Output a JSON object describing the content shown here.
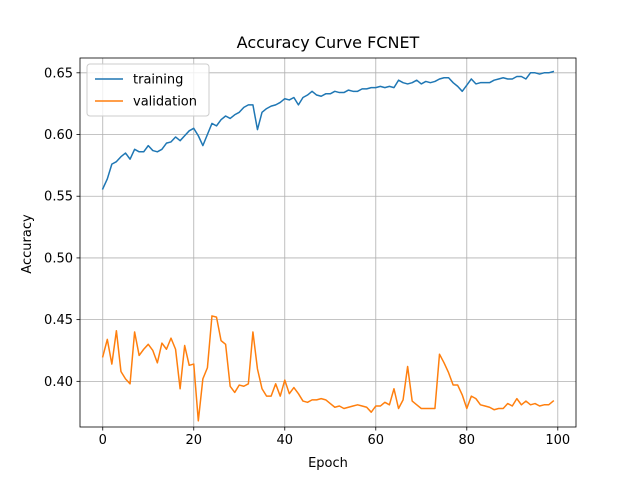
{
  "chart_data": {
    "type": "line",
    "title": "Accuracy Curve FCNET",
    "xlabel": "Epoch",
    "ylabel": "Accuracy",
    "xlim": [
      -5,
      104
    ],
    "ylim": [
      0.363,
      0.662
    ],
    "xticks": [
      0,
      20,
      40,
      60,
      80,
      100
    ],
    "xtick_labels": [
      "0",
      "20",
      "40",
      "60",
      "80",
      "100"
    ],
    "yticks": [
      0.4,
      0.45,
      0.5,
      0.55,
      0.6,
      0.65
    ],
    "ytick_labels": [
      "0.40",
      "0.45",
      "0.50",
      "0.55",
      "0.60",
      "0.65"
    ],
    "grid": true,
    "legend_position": "top-left",
    "series": [
      {
        "name": "training",
        "color": "#1f77b4",
        "x": [
          0,
          1,
          2,
          3,
          4,
          5,
          6,
          7,
          8,
          9,
          10,
          11,
          12,
          13,
          14,
          15,
          16,
          17,
          18,
          19,
          20,
          21,
          22,
          23,
          24,
          25,
          26,
          27,
          28,
          29,
          30,
          31,
          32,
          33,
          34,
          35,
          36,
          37,
          38,
          39,
          40,
          41,
          42,
          43,
          44,
          45,
          46,
          47,
          48,
          49,
          50,
          51,
          52,
          53,
          54,
          55,
          56,
          57,
          58,
          59,
          60,
          61,
          62,
          63,
          64,
          65,
          66,
          67,
          68,
          69,
          70,
          71,
          72,
          73,
          74,
          75,
          76,
          77,
          78,
          79,
          80,
          81,
          82,
          83,
          84,
          85,
          86,
          87,
          88,
          89,
          90,
          91,
          92,
          93,
          94,
          95,
          96,
          97,
          98,
          99
        ],
        "values": [
          0.556,
          0.564,
          0.576,
          0.578,
          0.582,
          0.585,
          0.58,
          0.588,
          0.586,
          0.586,
          0.591,
          0.587,
          0.586,
          0.588,
          0.593,
          0.594,
          0.598,
          0.595,
          0.599,
          0.603,
          0.605,
          0.599,
          0.591,
          0.6,
          0.609,
          0.607,
          0.612,
          0.615,
          0.613,
          0.616,
          0.618,
          0.622,
          0.624,
          0.624,
          0.604,
          0.618,
          0.621,
          0.623,
          0.624,
          0.626,
          0.629,
          0.628,
          0.63,
          0.624,
          0.63,
          0.632,
          0.635,
          0.632,
          0.631,
          0.633,
          0.633,
          0.635,
          0.634,
          0.634,
          0.636,
          0.635,
          0.635,
          0.637,
          0.637,
          0.638,
          0.638,
          0.639,
          0.638,
          0.639,
          0.638,
          0.644,
          0.642,
          0.641,
          0.642,
          0.644,
          0.641,
          0.643,
          0.642,
          0.643,
          0.645,
          0.646,
          0.646,
          0.642,
          0.639,
          0.635,
          0.64,
          0.645,
          0.641,
          0.642,
          0.642,
          0.642,
          0.644,
          0.645,
          0.646,
          0.645,
          0.645,
          0.647,
          0.647,
          0.645,
          0.65,
          0.65,
          0.649,
          0.65,
          0.65,
          0.651
        ]
      },
      {
        "name": "validation",
        "color": "#ff7f0e",
        "x": [
          0,
          1,
          2,
          3,
          4,
          5,
          6,
          7,
          8,
          9,
          10,
          11,
          12,
          13,
          14,
          15,
          16,
          17,
          18,
          19,
          20,
          21,
          22,
          23,
          24,
          25,
          26,
          27,
          28,
          29,
          30,
          31,
          32,
          33,
          34,
          35,
          36,
          37,
          38,
          39,
          40,
          41,
          42,
          43,
          44,
          45,
          46,
          47,
          48,
          49,
          50,
          51,
          52,
          53,
          54,
          55,
          56,
          57,
          58,
          59,
          60,
          61,
          62,
          63,
          64,
          65,
          66,
          67,
          68,
          69,
          70,
          71,
          72,
          73,
          74,
          75,
          76,
          77,
          78,
          79,
          80,
          81,
          82,
          83,
          84,
          85,
          86,
          87,
          88,
          89,
          90,
          91,
          92,
          93,
          94,
          95,
          96,
          97,
          98,
          99
        ],
        "values": [
          0.42,
          0.434,
          0.414,
          0.441,
          0.408,
          0.402,
          0.398,
          0.44,
          0.421,
          0.426,
          0.43,
          0.425,
          0.415,
          0.431,
          0.426,
          0.435,
          0.426,
          0.394,
          0.429,
          0.413,
          0.414,
          0.368,
          0.402,
          0.411,
          0.453,
          0.452,
          0.433,
          0.43,
          0.396,
          0.391,
          0.397,
          0.396,
          0.398,
          0.44,
          0.41,
          0.394,
          0.388,
          0.388,
          0.398,
          0.388,
          0.401,
          0.39,
          0.395,
          0.39,
          0.384,
          0.383,
          0.385,
          0.385,
          0.386,
          0.385,
          0.382,
          0.379,
          0.38,
          0.378,
          0.379,
          0.38,
          0.381,
          0.38,
          0.379,
          0.375,
          0.38,
          0.38,
          0.383,
          0.381,
          0.394,
          0.378,
          0.385,
          0.412,
          0.384,
          0.381,
          0.378,
          0.378,
          0.378,
          0.378,
          0.422,
          0.415,
          0.407,
          0.397,
          0.397,
          0.389,
          0.378,
          0.388,
          0.386,
          0.381,
          0.38,
          0.379,
          0.377,
          0.378,
          0.378,
          0.382,
          0.38,
          0.386,
          0.381,
          0.384,
          0.381,
          0.382,
          0.38,
          0.381,
          0.381,
          0.384
        ]
      }
    ]
  }
}
